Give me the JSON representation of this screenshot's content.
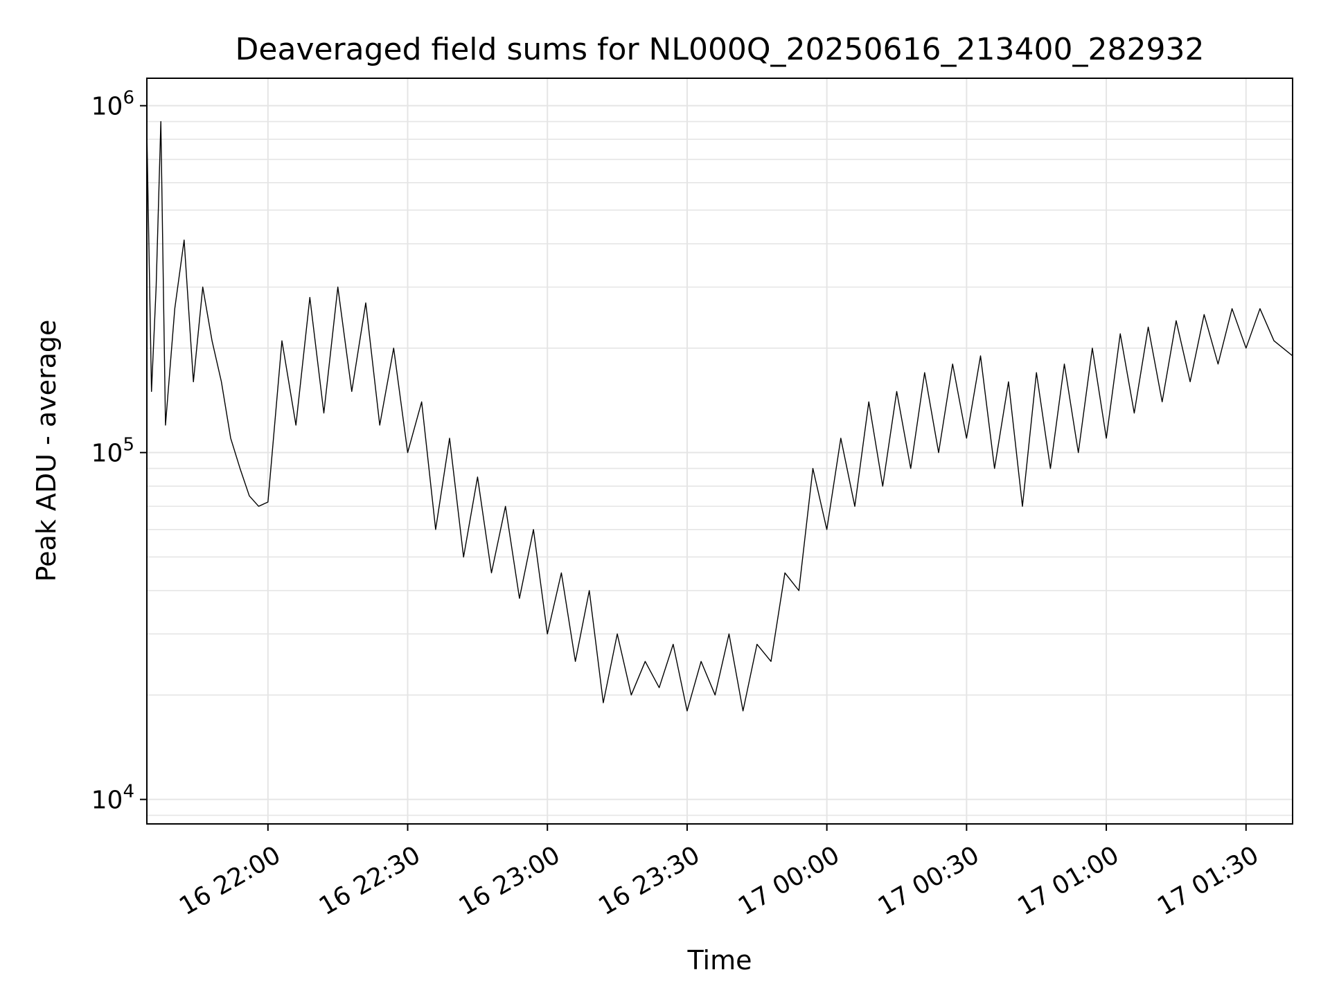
{
  "chart_data": {
    "type": "line",
    "title": "Deaveraged field sums for NL000Q_20250616_213400_282932",
    "xlabel": "Time",
    "ylabel": "Peak ADU - average",
    "y_scale": "log",
    "ylim": [
      8500,
      1200000
    ],
    "xlim": [
      "2025-06-16 21:34",
      "2025-06-17 01:40"
    ],
    "grid": true,
    "line_color": "#000000",
    "grid_color": "#e5e5e5",
    "x_ticks": [
      {
        "value": "2025-06-16 22:00",
        "label": "16 22:00"
      },
      {
        "value": "2025-06-16 22:30",
        "label": "16 22:30"
      },
      {
        "value": "2025-06-16 23:00",
        "label": "16 23:00"
      },
      {
        "value": "2025-06-16 23:30",
        "label": "16 23:30"
      },
      {
        "value": "2025-06-17 00:00",
        "label": "17 00:00"
      },
      {
        "value": "2025-06-17 00:30",
        "label": "17 00:30"
      },
      {
        "value": "2025-06-17 01:00",
        "label": "17 01:00"
      },
      {
        "value": "2025-06-17 01:30",
        "label": "17 01:30"
      }
    ],
    "y_ticks": [
      {
        "value": 10000,
        "base": "10",
        "exp": "4"
      },
      {
        "value": 100000,
        "base": "10",
        "exp": "5"
      },
      {
        "value": 1000000,
        "base": "10",
        "exp": "6"
      }
    ],
    "series": [
      {
        "points": [
          [
            "2025-06-16 21:34",
            850000
          ],
          [
            "2025-06-16 21:35",
            150000
          ],
          [
            "2025-06-16 21:36",
            300000
          ],
          [
            "2025-06-16 21:37",
            900000
          ],
          [
            "2025-06-16 21:38",
            120000
          ],
          [
            "2025-06-16 21:40",
            260000
          ],
          [
            "2025-06-16 21:42",
            410000
          ],
          [
            "2025-06-16 21:44",
            160000
          ],
          [
            "2025-06-16 21:46",
            300000
          ],
          [
            "2025-06-16 21:48",
            210000
          ],
          [
            "2025-06-16 21:50",
            160000
          ],
          [
            "2025-06-16 21:52",
            110000
          ],
          [
            "2025-06-16 21:54",
            90000
          ],
          [
            "2025-06-16 21:56",
            75000
          ],
          [
            "2025-06-16 21:58",
            70000
          ],
          [
            "2025-06-16 22:00",
            72000
          ],
          [
            "2025-06-16 22:03",
            210000
          ],
          [
            "2025-06-16 22:06",
            120000
          ],
          [
            "2025-06-16 22:09",
            280000
          ],
          [
            "2025-06-16 22:12",
            130000
          ],
          [
            "2025-06-16 22:15",
            300000
          ],
          [
            "2025-06-16 22:18",
            150000
          ],
          [
            "2025-06-16 22:21",
            270000
          ],
          [
            "2025-06-16 22:24",
            120000
          ],
          [
            "2025-06-16 22:27",
            200000
          ],
          [
            "2025-06-16 22:30",
            100000
          ],
          [
            "2025-06-16 22:33",
            140000
          ],
          [
            "2025-06-16 22:36",
            60000
          ],
          [
            "2025-06-16 22:39",
            110000
          ],
          [
            "2025-06-16 22:42",
            50000
          ],
          [
            "2025-06-16 22:45",
            85000
          ],
          [
            "2025-06-16 22:48",
            45000
          ],
          [
            "2025-06-16 22:51",
            70000
          ],
          [
            "2025-06-16 22:54",
            38000
          ],
          [
            "2025-06-16 22:57",
            60000
          ],
          [
            "2025-06-16 23:00",
            30000
          ],
          [
            "2025-06-16 23:03",
            45000
          ],
          [
            "2025-06-16 23:06",
            25000
          ],
          [
            "2025-06-16 23:09",
            40000
          ],
          [
            "2025-06-16 23:12",
            19000
          ],
          [
            "2025-06-16 23:15",
            30000
          ],
          [
            "2025-06-16 23:18",
            20000
          ],
          [
            "2025-06-16 23:21",
            25000
          ],
          [
            "2025-06-16 23:24",
            21000
          ],
          [
            "2025-06-16 23:27",
            28000
          ],
          [
            "2025-06-16 23:30",
            18000
          ],
          [
            "2025-06-16 23:33",
            25000
          ],
          [
            "2025-06-16 23:36",
            20000
          ],
          [
            "2025-06-16 23:39",
            30000
          ],
          [
            "2025-06-16 23:42",
            18000
          ],
          [
            "2025-06-16 23:45",
            28000
          ],
          [
            "2025-06-16 23:48",
            25000
          ],
          [
            "2025-06-16 23:51",
            45000
          ],
          [
            "2025-06-16 23:54",
            40000
          ],
          [
            "2025-06-16 23:57",
            90000
          ],
          [
            "2025-06-17 00:00",
            60000
          ],
          [
            "2025-06-17 00:03",
            110000
          ],
          [
            "2025-06-17 00:06",
            70000
          ],
          [
            "2025-06-17 00:09",
            140000
          ],
          [
            "2025-06-17 00:12",
            80000
          ],
          [
            "2025-06-17 00:15",
            150000
          ],
          [
            "2025-06-17 00:18",
            90000
          ],
          [
            "2025-06-17 00:21",
            170000
          ],
          [
            "2025-06-17 00:24",
            100000
          ],
          [
            "2025-06-17 00:27",
            180000
          ],
          [
            "2025-06-17 00:30",
            110000
          ],
          [
            "2025-06-17 00:33",
            190000
          ],
          [
            "2025-06-17 00:36",
            90000
          ],
          [
            "2025-06-17 00:39",
            160000
          ],
          [
            "2025-06-17 00:42",
            70000
          ],
          [
            "2025-06-17 00:45",
            170000
          ],
          [
            "2025-06-17 00:48",
            90000
          ],
          [
            "2025-06-17 00:51",
            180000
          ],
          [
            "2025-06-17 00:54",
            100000
          ],
          [
            "2025-06-17 00:57",
            200000
          ],
          [
            "2025-06-17 01:00",
            110000
          ],
          [
            "2025-06-17 01:03",
            220000
          ],
          [
            "2025-06-17 01:06",
            130000
          ],
          [
            "2025-06-17 01:09",
            230000
          ],
          [
            "2025-06-17 01:12",
            140000
          ],
          [
            "2025-06-17 01:15",
            240000
          ],
          [
            "2025-06-17 01:18",
            160000
          ],
          [
            "2025-06-17 01:21",
            250000
          ],
          [
            "2025-06-17 01:24",
            180000
          ],
          [
            "2025-06-17 01:27",
            260000
          ],
          [
            "2025-06-17 01:30",
            200000
          ],
          [
            "2025-06-17 01:33",
            260000
          ],
          [
            "2025-06-17 01:36",
            210000
          ],
          [
            "2025-06-17 01:40",
            190000
          ]
        ]
      }
    ]
  }
}
